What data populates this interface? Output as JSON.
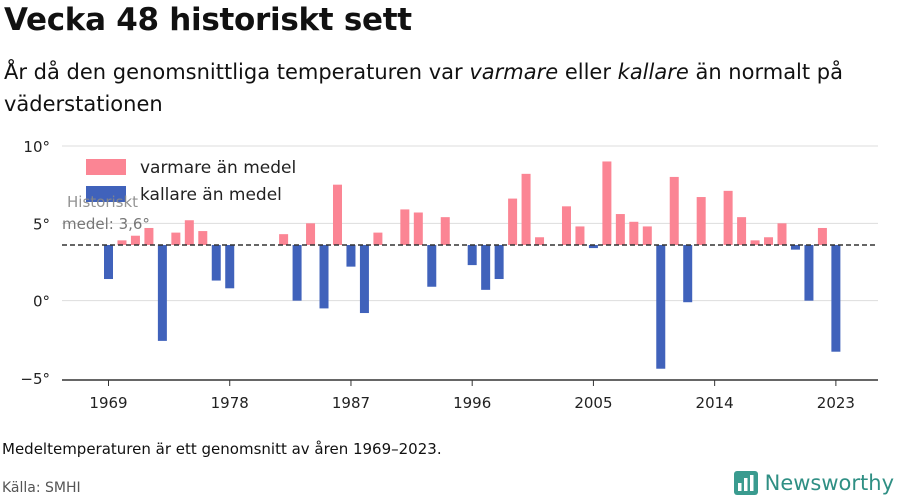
{
  "header": {
    "title": "Vecka 48 historiskt sett",
    "subtitle_part1": "År då den genomsnittliga temperaturen var ",
    "subtitle_em1": "varmare",
    "subtitle_part2": " eller ",
    "subtitle_em2": "kallare",
    "subtitle_part3": " än normalt på väderstationen"
  },
  "footer": {
    "note": "Medeltemperaturen är ett genomsnitt av åren 1969–2023.",
    "source": "Källa: SMHI",
    "brand": "Newsworthy"
  },
  "colors": {
    "warm": "#fb8594",
    "cold": "#4062bb",
    "grid": "#dddddd",
    "mean_line": "#333333"
  },
  "chart_data": {
    "type": "bar",
    "baseline": 3.6,
    "baseline_label_line1": "Historiskt",
    "baseline_label_line2": "medel: 3,6°",
    "ylim": [
      -5,
      10
    ],
    "yticks": [
      -5,
      0,
      5,
      10
    ],
    "ytick_labels": [
      "−5°",
      "0°",
      "5°",
      "10°"
    ],
    "xticks": [
      1969,
      1978,
      1987,
      1996,
      2005,
      2014,
      2023
    ],
    "xtick_labels": [
      "1969",
      "1978",
      "1987",
      "1996",
      "2005",
      "2014",
      "2023"
    ],
    "legend": {
      "placement": "top-left",
      "warm_label": "varmare än medel",
      "cold_label": "kallare än medel"
    },
    "years": [
      1969,
      1970,
      1971,
      1972,
      1973,
      1974,
      1975,
      1976,
      1977,
      1978,
      1979,
      1980,
      1981,
      1982,
      1983,
      1984,
      1985,
      1986,
      1987,
      1988,
      1989,
      1990,
      1991,
      1992,
      1993,
      1994,
      1995,
      1996,
      1997,
      1998,
      1999,
      2000,
      2001,
      2002,
      2003,
      2004,
      2005,
      2006,
      2007,
      2008,
      2009,
      2010,
      2011,
      2012,
      2013,
      2014,
      2015,
      2016,
      2017,
      2018,
      2019,
      2020,
      2021,
      2022,
      2023
    ],
    "values": [
      1.4,
      3.9,
      4.2,
      4.7,
      -2.6,
      4.4,
      5.2,
      4.5,
      1.3,
      0.8,
      null,
      null,
      null,
      4.3,
      0.0,
      5.0,
      -0.5,
      7.5,
      2.2,
      -0.8,
      4.4,
      null,
      5.9,
      5.7,
      0.9,
      5.4,
      null,
      2.3,
      0.7,
      1.4,
      6.6,
      8.2,
      4.1,
      null,
      6.1,
      4.8,
      3.4,
      9.0,
      5.6,
      5.1,
      4.8,
      -4.4,
      8.0,
      -0.1,
      6.7,
      null,
      7.1,
      5.4,
      3.9,
      4.1,
      5.0,
      3.3,
      0.0,
      4.7,
      -3.3
    ]
  }
}
